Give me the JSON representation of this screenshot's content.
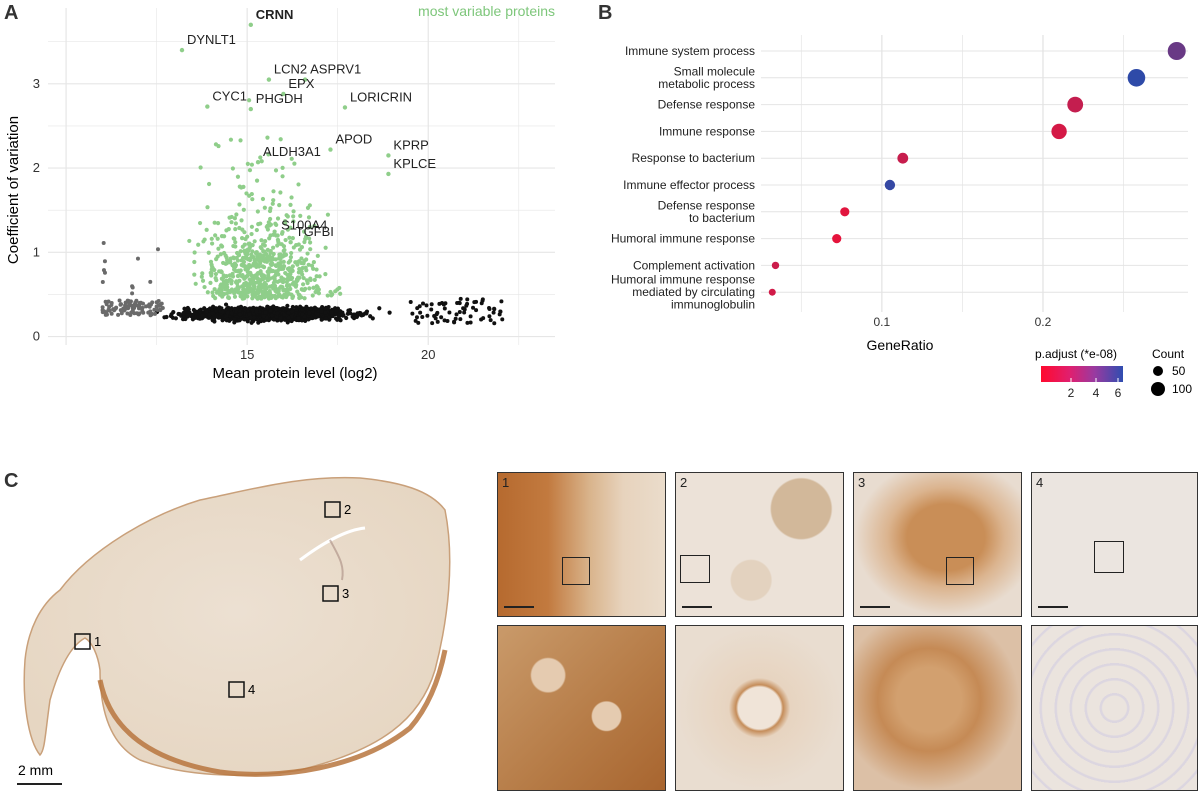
{
  "panels": {
    "a": {
      "letter": "A"
    },
    "b": {
      "letter": "B"
    },
    "c": {
      "letter": "C"
    }
  },
  "chart_data": [
    {
      "type": "scatter",
      "panel": "A",
      "xlabel": "Mean protein level (log2)",
      "ylabel": "Coefficient of variation",
      "xticks": [
        15,
        20
      ],
      "yticks": [
        0,
        1,
        2,
        3
      ],
      "xlim": [
        9.5,
        23.5
      ],
      "ylim": [
        -0.1,
        3.9
      ],
      "grid": true,
      "annotation": "most variable proteins",
      "colors": {
        "variable": "#8fce8a",
        "other": "#111111",
        "low": "#6a6a6a",
        "annotation": "#7dc67a"
      },
      "labeled_proteins": [
        {
          "name": "CRNN",
          "x": 15.1,
          "y": 3.7,
          "bold": true
        },
        {
          "name": "DYNLT1",
          "x": 13.2,
          "y": 3.4
        },
        {
          "name": "LCN2",
          "x": 15.6,
          "y": 3.05
        },
        {
          "name": "ASPRV1",
          "x": 16.6,
          "y": 3.05
        },
        {
          "name": "EPX",
          "x": 16.0,
          "y": 2.88
        },
        {
          "name": "CYC1",
          "x": 13.9,
          "y": 2.73
        },
        {
          "name": "PHGDH",
          "x": 15.1,
          "y": 2.7
        },
        {
          "name": "LORICRIN",
          "x": 17.7,
          "y": 2.72
        },
        {
          "name": "APOD",
          "x": 17.3,
          "y": 2.22
        },
        {
          "name": "KPRP",
          "x": 18.9,
          "y": 2.15
        },
        {
          "name": "ALDH3A1",
          "x": 15.3,
          "y": 2.07
        },
        {
          "name": "KPLCE",
          "x": 18.9,
          "y": 1.93
        },
        {
          "name": "S100A4",
          "x": 15.8,
          "y": 1.2
        },
        {
          "name": "TGFBI",
          "x": 16.2,
          "y": 1.12
        }
      ]
    },
    {
      "type": "scatter",
      "panel": "B",
      "xlabel": "GeneRatio",
      "xticks": [
        0.1,
        0.2
      ],
      "xlim": [
        0.025,
        0.29
      ],
      "categories": [
        "Immune system process",
        "Small molecule\nmetabolic process",
        "Defense response",
        "Immune response",
        "Response to bacterium",
        "Immune effector process",
        "Defense response\nto bacterium",
        "Humoral immune response",
        "Complement activation",
        "Humoral immune response\nmediated by circulating\nimmunoglobulin"
      ],
      "gene_ratio": [
        0.283,
        0.258,
        0.22,
        0.21,
        0.113,
        0.105,
        0.077,
        0.072,
        0.034,
        0.032
      ],
      "count": [
        102,
        100,
        88,
        85,
        55,
        52,
        45,
        44,
        32,
        30
      ],
      "p_adjust_e08": [
        4.2,
        6.0,
        1.4,
        0.9,
        1.3,
        5.8,
        0.5,
        0.4,
        1.2,
        1.0
      ],
      "legend": {
        "color_title": "p.adjust (*e-08)",
        "color_ticks": [
          "2",
          "4",
          "6"
        ],
        "size_title": "Count",
        "size_items": [
          "50",
          "100"
        ],
        "color_low": "#e8133a",
        "color_high": "#2e4aa8"
      }
    }
  ],
  "wholeslide": {
    "scale_label": "2 mm",
    "box_labels": [
      "1",
      "2",
      "3",
      "4"
    ]
  },
  "tiles": {
    "labels": [
      "1",
      "2",
      "3",
      "4"
    ]
  }
}
